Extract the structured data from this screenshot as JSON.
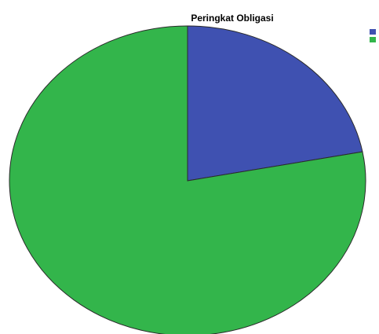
{
  "chart_data": {
    "type": "pie",
    "title": "Peringkat Obligasi",
    "slices": [
      {
        "label": "",
        "value": 22,
        "color": "#3F51B1"
      },
      {
        "label": "",
        "value": 78,
        "color": "#33B54B"
      }
    ],
    "legend": {
      "placement": "top-right",
      "entries": [
        {
          "label": "",
          "color": "#3F51B1"
        },
        {
          "label": "",
          "color": "#33B54B"
        }
      ]
    },
    "slice_outline_color": "#2b2b2b"
  }
}
